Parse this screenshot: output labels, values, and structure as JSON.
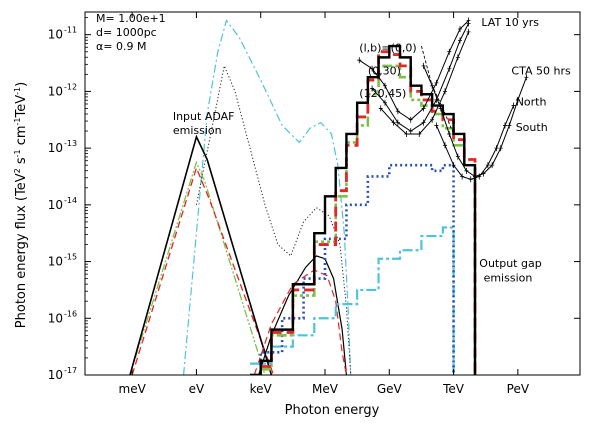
{
  "chart_data": {
    "type": "line",
    "xlabel": "Photon energy",
    "ylabel_parts": [
      "Photon energy flux (TeV",
      "2",
      " s",
      "-1",
      " cm",
      "-1",
      "TeV",
      "-1",
      ")"
    ],
    "x_scale": "log",
    "y_scale": "log",
    "x_unit": "log10(E/eV)",
    "xlim": [
      -5.2,
      17.9
    ],
    "ylim_exp": [
      -17,
      -10.6
    ],
    "grid": false,
    "x_ticks": [
      {
        "value": -3,
        "label": "meV"
      },
      {
        "value": 0,
        "label": "eV"
      },
      {
        "value": 3,
        "label": "keV"
      },
      {
        "value": 6,
        "label": "MeV"
      },
      {
        "value": 9,
        "label": "GeV"
      },
      {
        "value": 12,
        "label": "TeV"
      },
      {
        "value": 15,
        "label": "PeV"
      }
    ],
    "y_ticks": [
      {
        "exp": -11,
        "base": "10",
        "power": "-11"
      },
      {
        "exp": -12,
        "base": "10",
        "power": "-12"
      },
      {
        "exp": -13,
        "base": "10",
        "power": "-13"
      },
      {
        "exp": -14,
        "base": "10",
        "power": "-14"
      },
      {
        "exp": -15,
        "base": "10",
        "power": "-15"
      },
      {
        "exp": -16,
        "base": "10",
        "power": "-16"
      },
      {
        "exp": -17,
        "base": "10",
        "power": "-17"
      }
    ],
    "params": [
      "M=  1.00e+1",
      "d=  1000pc",
      "α=  0.9    M"
    ],
    "annotations": [
      {
        "text": "Input ADAF",
        "x": -1.1,
        "y": -12.5
      },
      {
        "text": "emission",
        "x": -1.1,
        "y": -12.75
      },
      {
        "text": "LAT 10 yrs",
        "x": 13.3,
        "y": -10.85
      },
      {
        "text": "(l,b)=(0,0)",
        "x": 7.6,
        "y": -11.3
      },
      {
        "text": "(0,30)",
        "x": 8.0,
        "y": -11.7
      },
      {
        "text": "(120,45)",
        "x": 7.6,
        "y": -12.1
      },
      {
        "text": "CTA 50 hrs",
        "x": 14.7,
        "y": -11.7
      },
      {
        "text": "North",
        "x": 14.9,
        "y": -12.25
      },
      {
        "text": "South",
        "x": 14.9,
        "y": -12.7
      },
      {
        "text": "Output gap",
        "x": 13.2,
        "y": -15.1
      },
      {
        "text": "emission",
        "x": 13.4,
        "y": -15.35
      }
    ],
    "series": [
      {
        "style": "cyan-dashdot",
        "color": "#4fc3d9",
        "points": [
          [
            -0.6,
            -17
          ],
          [
            0.5,
            -12.4
          ],
          [
            1.0,
            -11.3
          ],
          [
            1.4,
            -10.75
          ],
          [
            2.0,
            -11.05
          ],
          [
            3.0,
            -11.8
          ],
          [
            4.0,
            -12.6
          ],
          [
            4.8,
            -12.9
          ],
          [
            5.3,
            -12.65
          ],
          [
            5.8,
            -12.55
          ],
          [
            6.3,
            -12.75
          ],
          [
            6.6,
            -13.3
          ],
          [
            6.9,
            -14.5
          ],
          [
            7.1,
            -16.0
          ],
          [
            7.2,
            -17
          ]
        ]
      },
      {
        "style": "black-dotted",
        "color": "#222222",
        "points": [
          [
            0.0,
            -14.0
          ],
          [
            0.8,
            -12.5
          ],
          [
            1.3,
            -11.55
          ],
          [
            1.8,
            -12.0
          ],
          [
            2.5,
            -13.0
          ],
          [
            3.2,
            -14.0
          ],
          [
            3.8,
            -14.7
          ],
          [
            4.4,
            -14.9
          ],
          [
            5.0,
            -14.3
          ],
          [
            5.6,
            -14.05
          ],
          [
            6.2,
            -14.2
          ],
          [
            6.7,
            -14.7
          ],
          [
            7.0,
            -15.8
          ],
          [
            7.2,
            -17
          ]
        ]
      },
      {
        "style": "green-dashdotdot",
        "color": "#7dc04a",
        "points": [
          [
            -3.1,
            -17
          ],
          [
            0.0,
            -13.25
          ],
          [
            0.4,
            -13.6
          ],
          [
            3.2,
            -17
          ]
        ]
      },
      {
        "style": "red-dashed",
        "color": "#e02828",
        "points": [
          [
            -3.0,
            -17
          ],
          [
            0.0,
            -13.35
          ],
          [
            0.6,
            -13.9
          ],
          [
            3.6,
            -17
          ]
        ]
      },
      {
        "style": "black-solid",
        "color": "#000000",
        "points": [
          [
            -3.1,
            -17
          ],
          [
            0.0,
            -12.8
          ],
          [
            0.5,
            -13.2
          ],
          [
            3.5,
            -17
          ]
        ]
      },
      {
        "style": "black-solid-thin",
        "color": "#000000",
        "points": [
          [
            2.9,
            -17
          ],
          [
            3.5,
            -16.3
          ],
          [
            4.3,
            -15.6
          ],
          [
            5.1,
            -15.1
          ],
          [
            5.6,
            -14.9
          ],
          [
            6.0,
            -14.95
          ],
          [
            6.4,
            -15.3
          ],
          [
            6.8,
            -16.2
          ],
          [
            7.0,
            -17
          ]
        ]
      },
      {
        "style": "red-dashed-thin",
        "color": "#e02828",
        "points": [
          [
            2.7,
            -17
          ],
          [
            3.5,
            -16.1
          ],
          [
            4.5,
            -15.4
          ],
          [
            5.5,
            -15.15
          ],
          [
            6.1,
            -15.25
          ],
          [
            6.5,
            -15.7
          ],
          [
            6.8,
            -16.6
          ],
          [
            7.0,
            -17
          ]
        ]
      },
      {
        "style": "cyan-step",
        "color": "#4fc3d9",
        "step": true,
        "points": [
          [
            2.5,
            -16.8
          ],
          [
            3.5,
            -16.5
          ],
          [
            4.5,
            -16.3
          ],
          [
            5.5,
            -16.0
          ],
          [
            6.5,
            -15.75
          ],
          [
            7.5,
            -15.5
          ],
          [
            8.5,
            -14.95
          ],
          [
            9.5,
            -14.8
          ],
          [
            10.5,
            -14.55
          ],
          [
            11.5,
            -14.4
          ],
          [
            12.0,
            -14.4
          ]
        ],
        "drop_x": 12.0
      },
      {
        "style": "blue-dotted-step",
        "color": "#2d4fb5",
        "step": true,
        "points": [
          [
            2.5,
            -17.0
          ],
          [
            3.0,
            -16.6
          ],
          [
            4.0,
            -16.0
          ],
          [
            5.0,
            -15.3
          ],
          [
            6.0,
            -14.6
          ],
          [
            7.0,
            -14.0
          ],
          [
            8.0,
            -13.5
          ],
          [
            9.0,
            -13.3
          ],
          [
            10.0,
            -13.3
          ],
          [
            11.0,
            -13.4
          ],
          [
            11.5,
            -13.3
          ],
          [
            12.0,
            -13.4
          ]
        ],
        "drop_x": 12.0
      },
      {
        "style": "green-dashdotdot-step",
        "color": "#7dc04a",
        "step": true,
        "points": [
          [
            3.0,
            -16.9
          ],
          [
            3.5,
            -16.3
          ],
          [
            4.5,
            -15.6
          ],
          [
            5.5,
            -14.65
          ],
          [
            6.5,
            -13.85
          ],
          [
            7.0,
            -12.9
          ],
          [
            7.5,
            -12.6
          ],
          [
            8.0,
            -12.05
          ],
          [
            8.5,
            -11.55
          ],
          [
            9.0,
            -11.55
          ],
          [
            9.5,
            -11.75
          ],
          [
            10.0,
            -12.15
          ],
          [
            10.5,
            -12.25
          ],
          [
            11.0,
            -12.4
          ],
          [
            11.5,
            -12.65
          ],
          [
            12.0,
            -12.95
          ],
          [
            12.5,
            -13.3
          ],
          [
            13.0,
            -14.0
          ]
        ],
        "drop_x": 13.0
      },
      {
        "style": "red-dashed-step",
        "color": "#e02828",
        "step": true,
        "points": [
          [
            3.0,
            -16.85
          ],
          [
            3.5,
            -16.25
          ],
          [
            4.5,
            -15.5
          ],
          [
            5.5,
            -14.7
          ],
          [
            6.5,
            -13.75
          ],
          [
            7.0,
            -12.95
          ],
          [
            7.5,
            -12.45
          ],
          [
            8.0,
            -11.8
          ],
          [
            8.5,
            -11.3
          ],
          [
            9.0,
            -11.35
          ],
          [
            9.5,
            -11.55
          ],
          [
            10.0,
            -12.0
          ],
          [
            10.5,
            -12.15
          ],
          [
            11.0,
            -12.35
          ],
          [
            11.5,
            -12.5
          ],
          [
            12.0,
            -12.85
          ],
          [
            12.5,
            -13.2
          ],
          [
            13.0,
            -13.7
          ]
        ],
        "drop_x": 13.0
      },
      {
        "style": "black-solid-step",
        "color": "#000000",
        "step": true,
        "points": [
          [
            2.5,
            -17.0
          ],
          [
            3.0,
            -16.75
          ],
          [
            3.5,
            -16.2
          ],
          [
            4.5,
            -15.4
          ],
          [
            5.5,
            -14.5
          ],
          [
            6.0,
            -13.85
          ],
          [
            6.5,
            -13.35
          ],
          [
            7.0,
            -12.75
          ],
          [
            7.5,
            -12.2
          ],
          [
            8.0,
            -11.75
          ],
          [
            8.5,
            -11.4
          ],
          [
            9.0,
            -11.2
          ],
          [
            9.5,
            -11.4
          ],
          [
            10.0,
            -11.9
          ],
          [
            10.5,
            -12.05
          ],
          [
            11.0,
            -12.25
          ],
          [
            11.5,
            -12.4
          ],
          [
            12.0,
            -12.75
          ],
          [
            12.5,
            -13.3
          ],
          [
            13.0,
            -13.8
          ]
        ],
        "drop_x": 13.0
      },
      {
        "style": "dashed-fan",
        "color": "#000000",
        "points": [
          [
            10.5,
            -11.2
          ],
          [
            11.0,
            -11.9
          ],
          [
            11.5,
            -12.3
          ],
          [
            12.0,
            -12.75
          ]
        ]
      }
    ],
    "sensitivity_curves": [
      {
        "name": "LAT 10 yrs (0,0)",
        "color": "#000000",
        "points": [
          [
            7.6,
            -11.45
          ],
          [
            8.2,
            -11.6
          ],
          [
            8.8,
            -11.9
          ],
          [
            9.4,
            -12.35
          ],
          [
            10.0,
            -12.5
          ],
          [
            10.6,
            -12.3
          ],
          [
            11.2,
            -11.85
          ],
          [
            11.8,
            -11.3
          ],
          [
            12.3,
            -10.9
          ],
          [
            12.7,
            -10.75
          ]
        ]
      },
      {
        "name": "LAT 10 yrs (0,30)",
        "color": "#000000",
        "points": [
          [
            8.2,
            -11.95
          ],
          [
            8.8,
            -12.2
          ],
          [
            9.4,
            -12.55
          ],
          [
            10.0,
            -12.7
          ],
          [
            10.6,
            -12.55
          ],
          [
            11.2,
            -12.15
          ],
          [
            11.8,
            -11.6
          ],
          [
            12.3,
            -11.1
          ],
          [
            12.7,
            -10.8
          ]
        ]
      },
      {
        "name": "LAT 10 yrs (120,45)",
        "color": "#000000",
        "points": [
          [
            8.6,
            -12.3
          ],
          [
            9.2,
            -12.55
          ],
          [
            9.8,
            -12.75
          ],
          [
            10.4,
            -12.75
          ],
          [
            11.0,
            -12.5
          ],
          [
            11.6,
            -12.0
          ],
          [
            12.2,
            -11.4
          ],
          [
            12.7,
            -10.95
          ]
        ]
      },
      {
        "name": "CTA 50 hrs North",
        "color": "#000000",
        "points": [
          [
            10.6,
            -11.55
          ],
          [
            11.0,
            -11.9
          ],
          [
            11.4,
            -12.3
          ],
          [
            11.8,
            -12.75
          ],
          [
            12.2,
            -13.15
          ],
          [
            12.6,
            -13.4
          ],
          [
            13.0,
            -13.5
          ],
          [
            13.4,
            -13.45
          ],
          [
            13.8,
            -13.3
          ],
          [
            14.2,
            -13.0
          ],
          [
            14.6,
            -12.6
          ],
          [
            15.0,
            -12.15
          ],
          [
            15.4,
            -11.75
          ]
        ]
      },
      {
        "name": "CTA 50 hrs South",
        "color": "#000000",
        "points": [
          [
            11.2,
            -12.6
          ],
          [
            11.6,
            -12.95
          ],
          [
            12.0,
            -13.3
          ],
          [
            12.4,
            -13.5
          ],
          [
            12.8,
            -13.55
          ],
          [
            13.2,
            -13.5
          ],
          [
            13.6,
            -13.3
          ],
          [
            14.0,
            -13.0
          ],
          [
            14.4,
            -12.6
          ],
          [
            14.8,
            -12.25
          ]
        ]
      }
    ]
  }
}
